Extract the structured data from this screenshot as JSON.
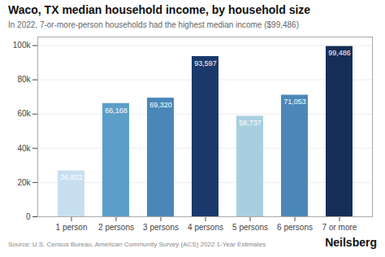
{
  "chart_data": {
    "type": "bar",
    "title": "Waco, TX median household income, by household size",
    "subtitle": "In 2022, 7-or-more-person households had the highest median income ($99,486)",
    "categories": [
      "1 person",
      "2 persons",
      "3 persons",
      "4 persons",
      "5 persons",
      "6 persons",
      "7 or more"
    ],
    "values": [
      26822,
      66168,
      69320,
      93597,
      58737,
      71053,
      99486
    ],
    "value_labels": [
      "26,822",
      "66,168",
      "69,320",
      "93,597",
      "58,737",
      "71,053",
      "99,486"
    ],
    "data_labels": true,
    "colors": [
      "#c8dff0",
      "#5b9ec9",
      "#4a87b8",
      "#1b3a6b",
      "#a8cfe0",
      "#4a87b8",
      "#162d55"
    ],
    "ylim": [
      0,
      105000
    ],
    "yticks": [
      0,
      {
        "value": 20000,
        "label": "20k"
      },
      {
        "value": 40000,
        "label": "40k"
      },
      {
        "value": 60000,
        "label": "60k"
      },
      {
        "value": 80000,
        "label": "80k"
      },
      {
        "value": 100000,
        "label": "100k"
      }
    ],
    "grid": true,
    "source": "Source: U.S. Census Bureau, American Community Survey (ACS) 2022 1-Year Estimates",
    "brand": "Neilsberg"
  }
}
